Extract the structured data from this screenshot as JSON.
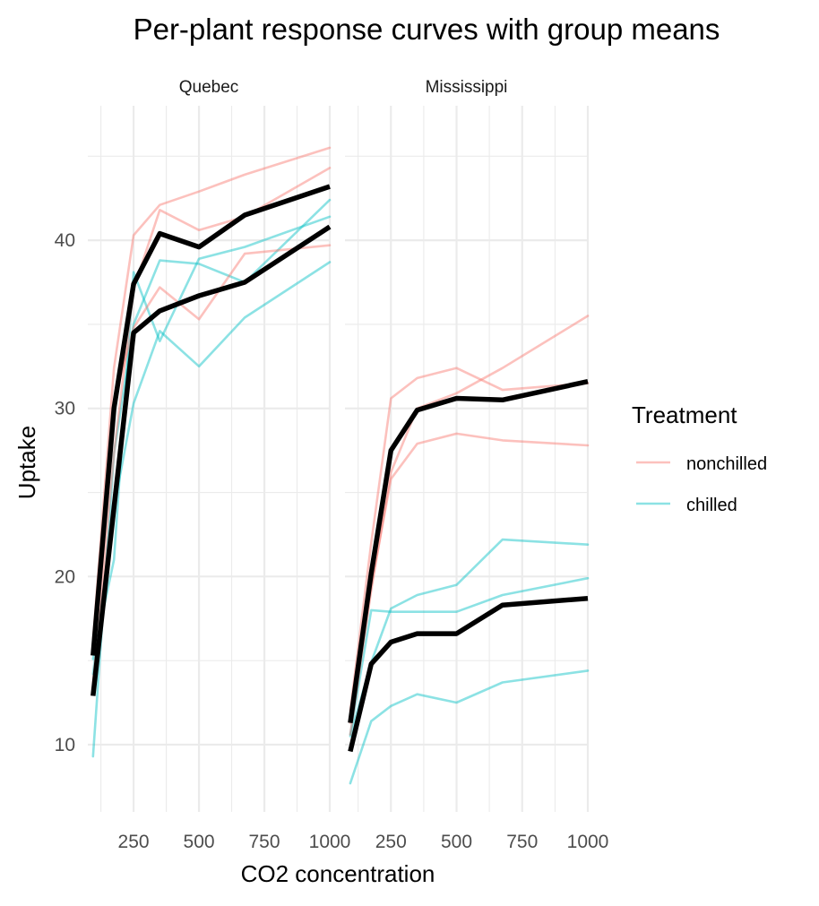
{
  "chart_data": {
    "type": "line",
    "title": "Per-plant response curves with group means",
    "xlabel": "CO2 concentration",
    "ylabel": "Uptake",
    "xlim": [
      75,
      1000
    ],
    "ylim": [
      6,
      48
    ],
    "x_ticks": [
      250,
      500,
      750,
      1000
    ],
    "x_tick_labels": [
      "250",
      "500",
      "750",
      "1000"
    ],
    "y_ticks": [
      10,
      20,
      30,
      40
    ],
    "y_tick_labels": [
      "10",
      "20",
      "30",
      "40"
    ],
    "grid": true,
    "colors": {
      "nonchilled": "#F8766D",
      "chilled": "#00BFC4",
      "mean": "#000000"
    },
    "legend": {
      "title": "Treatment",
      "position": "right",
      "entries": [
        {
          "label": "nonchilled",
          "color": "#F8766D"
        },
        {
          "label": "chilled",
          "color": "#00BFC4"
        }
      ]
    },
    "x": [
      95,
      175,
      250,
      350,
      500,
      675,
      1000
    ],
    "panels": [
      {
        "label": "Quebec",
        "plants": [
          {
            "treatment": "nonchilled",
            "values": [
              16.0,
              30.4,
              34.8,
              37.2,
              35.3,
              39.2,
              39.7
            ]
          },
          {
            "treatment": "nonchilled",
            "values": [
              13.6,
              27.3,
              37.1,
              41.8,
              40.6,
              41.4,
              44.3
            ]
          },
          {
            "treatment": "nonchilled",
            "values": [
              16.2,
              32.4,
              40.3,
              42.1,
              42.9,
              43.9,
              45.5
            ]
          },
          {
            "treatment": "chilled",
            "values": [
              14.2,
              24.1,
              30.3,
              34.6,
              32.5,
              35.4,
              38.7
            ]
          },
          {
            "treatment": "chilled",
            "values": [
              9.3,
              27.3,
              35.0,
              38.8,
              38.6,
              37.5,
              42.4
            ]
          },
          {
            "treatment": "chilled",
            "values": [
              15.1,
              21.0,
              38.1,
              34.0,
              38.9,
              39.6,
              41.4
            ]
          }
        ],
        "means": [
          {
            "treatment": "nonchilled",
            "values": [
              15.3,
              30.0,
              37.4,
              40.4,
              39.6,
              41.5,
              43.2
            ]
          },
          {
            "treatment": "chilled",
            "values": [
              12.9,
              24.1,
              34.5,
              35.8,
              36.7,
              37.5,
              40.8
            ]
          }
        ]
      },
      {
        "label": "Mississippi",
        "plants": [
          {
            "treatment": "nonchilled",
            "values": [
              10.6,
              19.2,
              26.2,
              30.0,
              30.9,
              32.4,
              35.5
            ]
          },
          {
            "treatment": "nonchilled",
            "values": [
              12.0,
              22.0,
              30.6,
              31.8,
              32.4,
              31.1,
              31.5
            ]
          },
          {
            "treatment": "nonchilled",
            "values": [
              11.3,
              19.4,
              25.8,
              27.9,
              28.5,
              28.1,
              27.8
            ]
          },
          {
            "treatment": "chilled",
            "values": [
              10.5,
              14.9,
              18.1,
              18.9,
              19.5,
              22.2,
              21.9
            ]
          },
          {
            "treatment": "chilled",
            "values": [
              7.7,
              11.4,
              12.3,
              13.0,
              12.5,
              13.7,
              14.4
            ]
          },
          {
            "treatment": "chilled",
            "values": [
              10.6,
              18.0,
              17.9,
              17.9,
              17.9,
              18.9,
              19.9
            ]
          }
        ],
        "means": [
          {
            "treatment": "nonchilled",
            "values": [
              11.3,
              20.2,
              27.5,
              29.9,
              30.6,
              30.5,
              31.6
            ]
          },
          {
            "treatment": "chilled",
            "values": [
              9.6,
              14.8,
              16.1,
              16.6,
              16.6,
              18.3,
              18.7
            ]
          }
        ]
      }
    ]
  }
}
